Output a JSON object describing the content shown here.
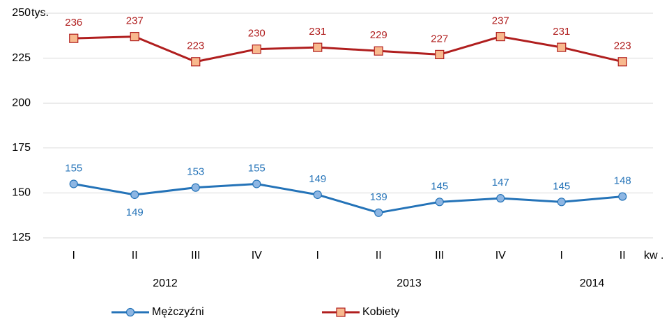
{
  "chart_data": {
    "type": "line",
    "unit_label": "tys.",
    "x_unit_label": "kw .",
    "categories": [
      "I",
      "II",
      "III",
      "IV",
      "I",
      "II",
      "III",
      "IV",
      "I",
      "II"
    ],
    "year_groups": [
      {
        "label": "2012",
        "span": 4
      },
      {
        "label": "2013",
        "span": 4
      },
      {
        "label": "2014",
        "span": 2
      }
    ],
    "series": [
      {
        "name": "Mężczyźni",
        "color": "#2473b8",
        "marker_fill": "#8db6e3",
        "marker": "circle",
        "values": [
          155,
          149,
          153,
          155,
          149,
          139,
          145,
          147,
          145,
          148
        ]
      },
      {
        "name": "Kobiety",
        "color": "#b01e1e",
        "marker_fill": "#f8b98e",
        "marker": "square",
        "values": [
          236,
          237,
          223,
          230,
          231,
          229,
          227,
          237,
          231,
          223
        ]
      }
    ],
    "ylim": [
      125,
      250
    ],
    "yticks": [
      125,
      150,
      175,
      200,
      225,
      250
    ],
    "grid": true
  }
}
